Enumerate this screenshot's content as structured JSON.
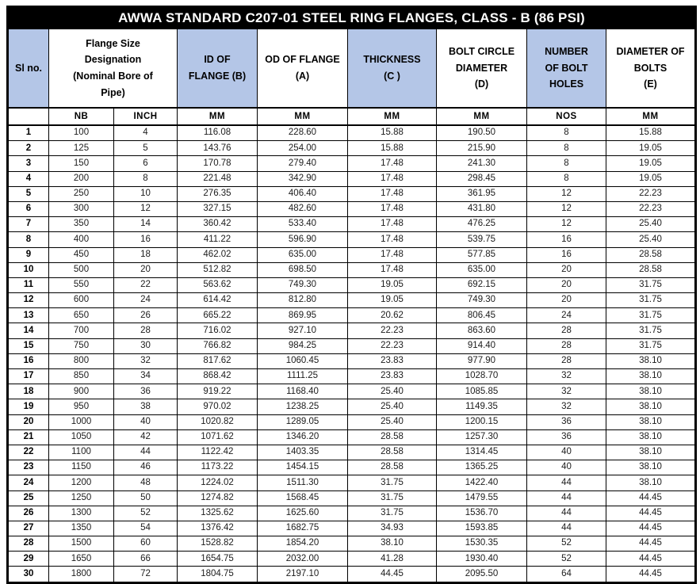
{
  "colors": {
    "header_fill": "#b4c6e7",
    "title_bg": "#000000",
    "title_text": "#ffffff",
    "grid": "#000000",
    "body_text": "#1c1c1c"
  },
  "chart_data": {
    "type": "table",
    "title": "AWWA STANDARD C207-01 STEEL RING FLANGES, CLASS - B (86 PSI)",
    "header": {
      "sl_no": "Sl no.",
      "flange_size": "Flange Size\nDesignation\n(Nominal Bore of\nPipe)",
      "id_of_flange": "ID OF\nFLANGE (B)",
      "od_of_flange": "OD OF FLANGE\n(A)",
      "thickness": "THICKNESS\n(C )",
      "bolt_circle_diameter": "BOLT CIRCLE\nDIAMETER\n(D)",
      "number_of_bolt_holes": "NUMBER\nOF BOLT\nHOLES",
      "diameter_of_bolts": "DIAMETER OF\nBOLTS\n(E)"
    },
    "units_row": [
      "",
      "NB",
      "INCH",
      "MM",
      "MM",
      "MM",
      "MM",
      "NOS",
      "MM"
    ],
    "column_keys": [
      "sl_no",
      "nb",
      "inch",
      "id_of_flange_mm",
      "od_of_flange_mm",
      "thickness_mm",
      "bolt_circle_diameter_mm",
      "number_of_bolt_holes",
      "diameter_of_bolts_mm"
    ],
    "rows": [
      [
        "1",
        "100",
        "4",
        "116.08",
        "228.60",
        "15.88",
        "190.50",
        "8",
        "15.88"
      ],
      [
        "2",
        "125",
        "5",
        "143.76",
        "254.00",
        "15.88",
        "215.90",
        "8",
        "19.05"
      ],
      [
        "3",
        "150",
        "6",
        "170.78",
        "279.40",
        "17.48",
        "241.30",
        "8",
        "19.05"
      ],
      [
        "4",
        "200",
        "8",
        "221.48",
        "342.90",
        "17.48",
        "298.45",
        "8",
        "19.05"
      ],
      [
        "5",
        "250",
        "10",
        "276.35",
        "406.40",
        "17.48",
        "361.95",
        "12",
        "22.23"
      ],
      [
        "6",
        "300",
        "12",
        "327.15",
        "482.60",
        "17.48",
        "431.80",
        "12",
        "22.23"
      ],
      [
        "7",
        "350",
        "14",
        "360.42",
        "533.40",
        "17.48",
        "476.25",
        "12",
        "25.40"
      ],
      [
        "8",
        "400",
        "16",
        "411.22",
        "596.90",
        "17.48",
        "539.75",
        "16",
        "25.40"
      ],
      [
        "9",
        "450",
        "18",
        "462.02",
        "635.00",
        "17.48",
        "577.85",
        "16",
        "28.58"
      ],
      [
        "10",
        "500",
        "20",
        "512.82",
        "698.50",
        "17.48",
        "635.00",
        "20",
        "28.58"
      ],
      [
        "11",
        "550",
        "22",
        "563.62",
        "749.30",
        "19.05",
        "692.15",
        "20",
        "31.75"
      ],
      [
        "12",
        "600",
        "24",
        "614.42",
        "812.80",
        "19.05",
        "749.30",
        "20",
        "31.75"
      ],
      [
        "13",
        "650",
        "26",
        "665.22",
        "869.95",
        "20.62",
        "806.45",
        "24",
        "31.75"
      ],
      [
        "14",
        "700",
        "28",
        "716.02",
        "927.10",
        "22.23",
        "863.60",
        "28",
        "31.75"
      ],
      [
        "15",
        "750",
        "30",
        "766.82",
        "984.25",
        "22.23",
        "914.40",
        "28",
        "31.75"
      ],
      [
        "16",
        "800",
        "32",
        "817.62",
        "1060.45",
        "23.83",
        "977.90",
        "28",
        "38.10"
      ],
      [
        "17",
        "850",
        "34",
        "868.42",
        "1111.25",
        "23.83",
        "1028.70",
        "32",
        "38.10"
      ],
      [
        "18",
        "900",
        "36",
        "919.22",
        "1168.40",
        "25.40",
        "1085.85",
        "32",
        "38.10"
      ],
      [
        "19",
        "950",
        "38",
        "970.02",
        "1238.25",
        "25.40",
        "1149.35",
        "32",
        "38.10"
      ],
      [
        "20",
        "1000",
        "40",
        "1020.82",
        "1289.05",
        "25.40",
        "1200.15",
        "36",
        "38.10"
      ],
      [
        "21",
        "1050",
        "42",
        "1071.62",
        "1346.20",
        "28.58",
        "1257.30",
        "36",
        "38.10"
      ],
      [
        "22",
        "1100",
        "44",
        "1122.42",
        "1403.35",
        "28.58",
        "1314.45",
        "40",
        "38.10"
      ],
      [
        "23",
        "1150",
        "46",
        "1173.22",
        "1454.15",
        "28.58",
        "1365.25",
        "40",
        "38.10"
      ],
      [
        "24",
        "1200",
        "48",
        "1224.02",
        "1511.30",
        "31.75",
        "1422.40",
        "44",
        "38.10"
      ],
      [
        "25",
        "1250",
        "50",
        "1274.82",
        "1568.45",
        "31.75",
        "1479.55",
        "44",
        "44.45"
      ],
      [
        "26",
        "1300",
        "52",
        "1325.62",
        "1625.60",
        "31.75",
        "1536.70",
        "44",
        "44.45"
      ],
      [
        "27",
        "1350",
        "54",
        "1376.42",
        "1682.75",
        "34.93",
        "1593.85",
        "44",
        "44.45"
      ],
      [
        "28",
        "1500",
        "60",
        "1528.82",
        "1854.20",
        "38.10",
        "1530.35",
        "52",
        "44.45"
      ],
      [
        "29",
        "1650",
        "66",
        "1654.75",
        "2032.00",
        "41.28",
        "1930.40",
        "52",
        "44.45"
      ],
      [
        "30",
        "1800",
        "72",
        "1804.75",
        "2197.10",
        "44.45",
        "2095.50",
        "64",
        "44.45"
      ]
    ]
  }
}
